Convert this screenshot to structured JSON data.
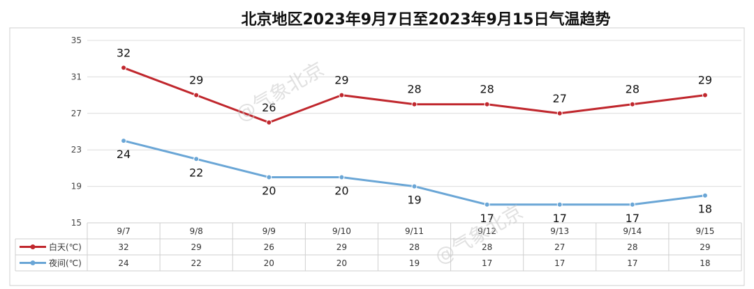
{
  "chart_data": {
    "type": "line",
    "title": "北京地区2023年9月7日至2023年9月15日气温趋势",
    "categories": [
      "9/7",
      "9/8",
      "9/9",
      "9/10",
      "9/11",
      "9/12",
      "9/13",
      "9/14",
      "9/15"
    ],
    "ylim": [
      15,
      35
    ],
    "yticks": [
      15,
      19,
      23,
      27,
      31,
      35
    ],
    "grid": true,
    "legend": "data-table-left",
    "series": [
      {
        "name": "白天(℃)",
        "color": "#c0272d",
        "values": [
          32,
          29,
          26,
          29,
          28,
          28,
          27,
          28,
          29
        ]
      },
      {
        "name": "夜间(℃)",
        "color": "#6aa6d6",
        "values": [
          24,
          22,
          20,
          20,
          19,
          17,
          17,
          17,
          18
        ]
      }
    ]
  },
  "watermark": "@气象北京"
}
